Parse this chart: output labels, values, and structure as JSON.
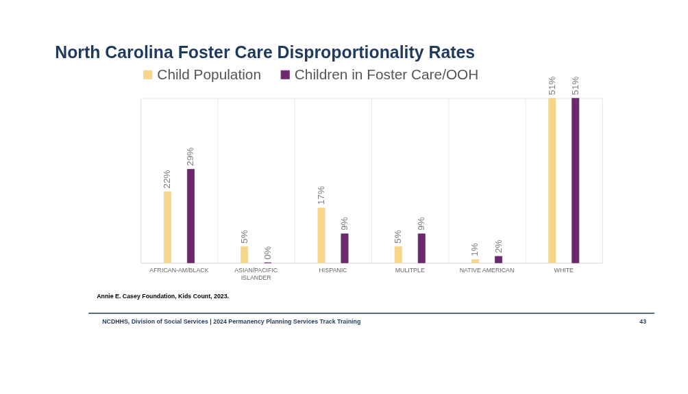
{
  "chart_data": {
    "type": "bar",
    "title": "North Carolina Foster Care Disproportionality Rates",
    "categories": [
      "AFRICAN-AM/BLACK",
      "ASIAN/PACIFIC ISLANDER",
      "HISPANIC",
      "MULITPLE",
      "NATIVE AMERICAN",
      "WHITE"
    ],
    "series": [
      {
        "name": "Child Population",
        "color": "#f5d68a",
        "values": [
          22,
          5,
          17,
          5,
          1,
          51
        ],
        "value_labels": [
          "22%",
          "5%",
          "17%",
          "5%",
          "1%",
          "51%"
        ]
      },
      {
        "name": "Children in Foster Care/OOH",
        "color": "#6b2a6e",
        "values": [
          29,
          0,
          9,
          9,
          2,
          51
        ],
        "value_labels": [
          "29%",
          "0%",
          "9%",
          "9%",
          "2%",
          "51%"
        ]
      }
    ],
    "legend": "top",
    "grid": "x",
    "annotations": [
      "Annie E. Casey Foundation, Kids Count, 2023.",
      "NCDHHS, Division of Social Services | 2024 Permanency Planning Services Track Training",
      "43"
    ]
  }
}
